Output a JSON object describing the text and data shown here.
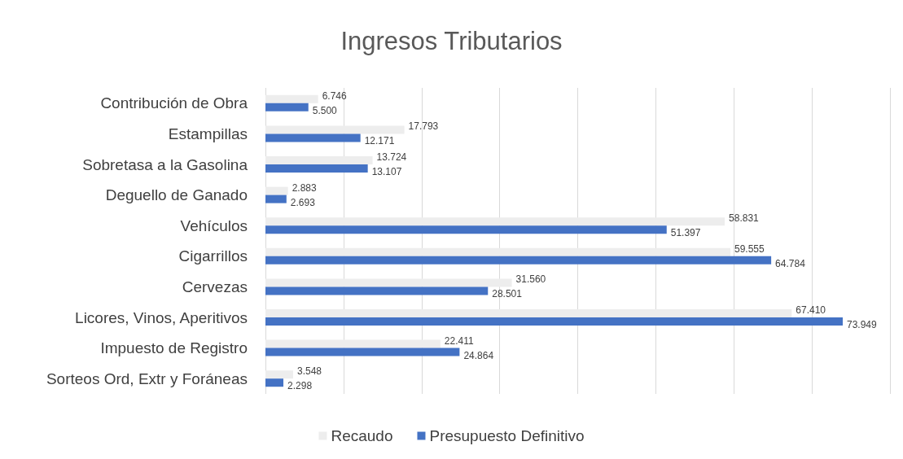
{
  "chart_data": {
    "type": "bar",
    "orientation": "horizontal",
    "title": "Ingresos Tributarios",
    "categories": [
      "Contribución de Obra",
      "Estampillas",
      "Sobretasa a la Gasolina",
      "Deguello de Ganado",
      "Vehículos",
      "Cigarrillos",
      "Cervezas",
      "Licores, Vinos, Aperitivos",
      "Impuesto de Registro",
      "Sorteos Ord, Extr y Foráneas"
    ],
    "series": [
      {
        "name": "Recaudo",
        "color": "#ededed",
        "values": [
          6.746,
          17.793,
          13.724,
          2.883,
          58.831,
          59.555,
          31.56,
          67.41,
          22.411,
          3.548
        ],
        "value_labels": [
          "6.746",
          "17.793",
          "13.724",
          "2.883",
          "58.831",
          "59.555",
          "31.560",
          "67.410",
          "22.411",
          "3.548"
        ]
      },
      {
        "name": "Presupuesto Definitivo",
        "color": "#4472c4",
        "values": [
          5.5,
          12.171,
          13.107,
          2.693,
          51.397,
          64.784,
          28.501,
          73.949,
          24.864,
          2.298
        ],
        "value_labels": [
          "5.500",
          "12.171",
          "13.107",
          "2.693",
          "51.397",
          "64.784",
          "28.501",
          "73.949",
          "24.864",
          "2.298"
        ]
      }
    ],
    "xlim": [
      0,
      80
    ],
    "xticks": [
      {
        "value": 0,
        "label": null
      },
      {
        "value": 10,
        "label": null
      },
      {
        "value": 20,
        "label": null
      },
      {
        "value": 30,
        "label": null
      },
      {
        "value": 40,
        "label": null
      },
      {
        "value": 50,
        "label": null
      },
      {
        "value": 60,
        "label": null
      },
      {
        "value": 70,
        "label": null
      },
      {
        "value": 80,
        "label": null
      }
    ],
    "tick_labels": "y",
    "grid": "x",
    "legend": "bottom"
  }
}
